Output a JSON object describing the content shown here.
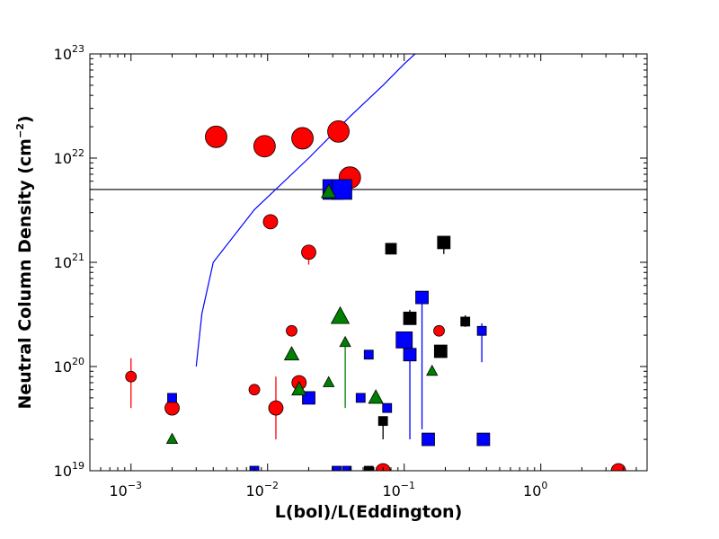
{
  "chart_data": {
    "type": "scatter",
    "title": "",
    "xlabel": "L(bol)/L(Eddington)",
    "ylabel_main": "Neutral Column Density (cm",
    "ylabel_sup": "−2",
    "ylabel_close": ")",
    "xscale": "log",
    "yscale": "log",
    "xlim": [
      0.0005,
      6
    ],
    "ylim": [
      1e+19,
      1e+23
    ],
    "grid": false,
    "x_ticks": [
      {
        "base": "10",
        "exp": "−3",
        "value": 0.001
      },
      {
        "base": "10",
        "exp": "−2",
        "value": 0.01
      },
      {
        "base": "10",
        "exp": "−1",
        "value": 0.1
      },
      {
        "base": "10",
        "exp": "0",
        "value": 1
      }
    ],
    "y_ticks": [
      {
        "base": "10",
        "exp": "19",
        "value": 1e+19
      },
      {
        "base": "10",
        "exp": "20",
        "value": 1e+20
      },
      {
        "base": "10",
        "exp": "21",
        "value": 1e+21
      },
      {
        "base": "10",
        "exp": "22",
        "value": 1e+22
      },
      {
        "base": "10",
        "exp": "23",
        "value": 1e+23
      }
    ],
    "colors": {
      "red": "#ff0000",
      "blue": "#0000ff",
      "green": "#008000",
      "black": "#000000",
      "curve": "#0000ff",
      "hline": "#000000"
    },
    "hline": {
      "y": 5e+21
    },
    "curve": [
      [
        0.003,
        1e+20
      ],
      [
        0.0033,
        3.2e+20
      ],
      [
        0.004,
        1e+21
      ],
      [
        0.008,
        3.2e+21
      ],
      [
        0.02,
        1e+22
      ],
      [
        0.04,
        2.5e+22
      ],
      [
        0.07,
        5e+22
      ],
      [
        0.1,
        8e+22
      ],
      [
        0.12,
        1e+23
      ]
    ],
    "series": [
      {
        "marker": "circle",
        "color": "red",
        "points": [
          {
            "x": 0.001,
            "y": 8e+19,
            "s": 6,
            "err": [
              4e+19,
              1.2e+20
            ]
          },
          {
            "x": 0.002,
            "y": 4e+19,
            "s": 8
          },
          {
            "x": 0.0042,
            "y": 1.6e+22,
            "s": 12
          },
          {
            "x": 0.008,
            "y": 6e+19,
            "s": 6
          },
          {
            "x": 0.0095,
            "y": 1.3e+22,
            "s": 12
          },
          {
            "x": 0.0105,
            "y": 2.45e+21,
            "s": 8
          },
          {
            "x": 0.0115,
            "y": 4e+19,
            "s": 8,
            "err": [
              2e+19,
              8e+19
            ]
          },
          {
            "x": 0.015,
            "y": 2.2e+20,
            "s": 6
          },
          {
            "x": 0.017,
            "y": 7e+19,
            "s": 8
          },
          {
            "x": 0.018,
            "y": 1.55e+22,
            "s": 12
          },
          {
            "x": 0.02,
            "y": 1.25e+21,
            "s": 8,
            "err": [
              9.5e+20,
              1.3e+21
            ]
          },
          {
            "x": 0.033,
            "y": 1.8e+22,
            "s": 12
          },
          {
            "x": 0.04,
            "y": 6.5e+21,
            "s": 12
          },
          {
            "x": 0.07,
            "y": 1e+19,
            "s": 8
          },
          {
            "x": 0.18,
            "y": 2.2e+20,
            "s": 6
          },
          {
            "x": 3.7,
            "y": 1e+19,
            "s": 8
          }
        ]
      },
      {
        "marker": "square",
        "color": "blue",
        "points": [
          {
            "x": 0.002,
            "y": 5e+19,
            "s": 5
          },
          {
            "x": 0.008,
            "y": 1e+19,
            "s": 5
          },
          {
            "x": 0.02,
            "y": 5e+19,
            "s": 7
          },
          {
            "x": 0.03,
            "y": 5e+21,
            "s": 11
          },
          {
            "x": 0.035,
            "y": 5e+21,
            "s": 11
          },
          {
            "x": 0.032,
            "y": 1e+19,
            "s": 5
          },
          {
            "x": 0.038,
            "y": 1e+19,
            "s": 5
          },
          {
            "x": 0.048,
            "y": 5e+19,
            "s": 5
          },
          {
            "x": 0.055,
            "y": 1.3e+20,
            "s": 5
          },
          {
            "x": 0.075,
            "y": 4e+19,
            "s": 5
          },
          {
            "x": 0.1,
            "y": 1.8e+20,
            "s": 9
          },
          {
            "x": 0.11,
            "y": 1.3e+20,
            "s": 7,
            "err": [
              2e+19,
              1.3e+20
            ]
          },
          {
            "x": 0.135,
            "y": 4.6e+20,
            "s": 7,
            "err": [
              2.5e+19,
              4.6e+20
            ]
          },
          {
            "x": 0.15,
            "y": 2e+19,
            "s": 7
          },
          {
            "x": 0.37,
            "y": 2.2e+20,
            "s": 5,
            "err": [
              1.1e+20,
              2.6e+20
            ]
          },
          {
            "x": 0.38,
            "y": 2e+19,
            "s": 7
          }
        ]
      },
      {
        "marker": "triangle",
        "color": "green",
        "points": [
          {
            "x": 0.002,
            "y": 2e+19,
            "s": 6
          },
          {
            "x": 0.015,
            "y": 1.3e+20,
            "s": 8
          },
          {
            "x": 0.017,
            "y": 6e+19,
            "s": 8
          },
          {
            "x": 0.028,
            "y": 7e+19,
            "s": 6
          },
          {
            "x": 0.028,
            "y": 4.7e+21,
            "s": 8
          },
          {
            "x": 0.034,
            "y": 3e+20,
            "s": 10
          },
          {
            "x": 0.037,
            "y": 1.7e+20,
            "s": 6,
            "err": [
              4e+19,
              1.7e+20
            ]
          },
          {
            "x": 0.062,
            "y": 5e+19,
            "s": 8
          },
          {
            "x": 0.16,
            "y": 9e+19,
            "s": 6
          }
        ]
      },
      {
        "marker": "square",
        "color": "black",
        "points": [
          {
            "x": 0.055,
            "y": 1e+19,
            "s": 5
          },
          {
            "x": 0.07,
            "y": 3e+19,
            "s": 5,
            "err": [
              2e+19,
              3e+19
            ]
          },
          {
            "x": 0.08,
            "y": 1.35e+21,
            "s": 6,
            "err": [
              1.2e+21,
              1.5e+21
            ]
          },
          {
            "x": 0.11,
            "y": 2.9e+20,
            "s": 7,
            "err": [
              2.6e+20,
              3.5e+20
            ]
          },
          {
            "x": 0.185,
            "y": 1.4e+20,
            "s": 7
          },
          {
            "x": 0.195,
            "y": 1.55e+21,
            "s": 7,
            "err": [
              1.2e+21,
              1.6e+21
            ]
          },
          {
            "x": 0.28,
            "y": 2.7e+20,
            "s": 5,
            "err": [
              2.4e+20,
              3.1e+20
            ]
          }
        ]
      }
    ]
  }
}
